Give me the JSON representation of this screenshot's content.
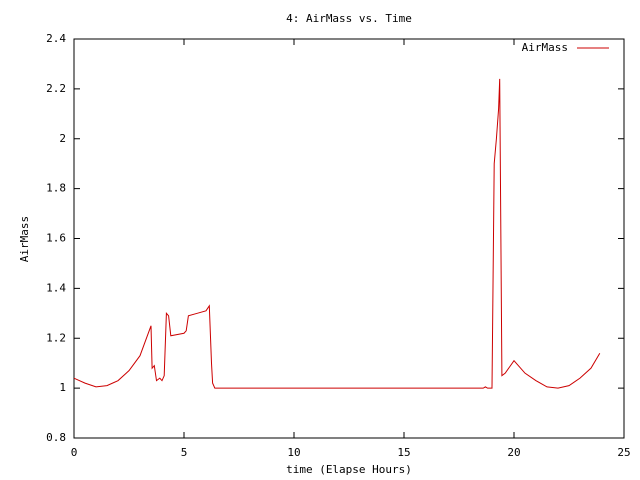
{
  "chart_data": {
    "type": "line",
    "title": "4: AirMass vs. Time",
    "xlabel": "time (Elapse Hours)",
    "ylabel": "AirMass",
    "x": [
      0,
      0.5,
      1.0,
      1.5,
      2.0,
      2.5,
      3.0,
      3.5,
      3.55,
      3.65,
      3.75,
      3.9,
      4.0,
      4.1,
      4.2,
      4.3,
      4.4,
      5.0,
      5.1,
      5.2,
      5.6,
      6.0,
      6.15,
      6.25,
      6.3,
      6.4,
      18.6,
      18.7,
      18.8,
      19.0,
      19.05,
      19.1,
      19.2,
      19.3,
      19.35,
      19.45,
      19.6,
      20.0,
      20.5,
      21.0,
      21.5,
      22.0,
      22.5,
      23.0,
      23.5,
      23.9
    ],
    "series": [
      {
        "name": "AirMass",
        "color": "#cc0000",
        "values": [
          1.04,
          1.02,
          1.005,
          1.01,
          1.03,
          1.07,
          1.13,
          1.25,
          1.08,
          1.09,
          1.03,
          1.04,
          1.03,
          1.05,
          1.3,
          1.29,
          1.21,
          1.22,
          1.23,
          1.29,
          1.3,
          1.31,
          1.33,
          1.1,
          1.02,
          1.0,
          1.0,
          1.005,
          1.0,
          1.0,
          1.45,
          1.9,
          2.0,
          2.12,
          2.24,
          1.05,
          1.06,
          1.11,
          1.06,
          1.03,
          1.005,
          1.0,
          1.01,
          1.04,
          1.08,
          1.14
        ]
      }
    ],
    "xlim": [
      0,
      25
    ],
    "xticks": [
      0,
      5,
      10,
      15,
      20,
      25
    ],
    "ylim": [
      0.8,
      2.4
    ],
    "yticks": [
      0.8,
      1,
      1.2,
      1.4,
      1.6,
      1.8,
      2,
      2.2,
      2.4
    ],
    "grid": false,
    "legend": "top-right"
  }
}
